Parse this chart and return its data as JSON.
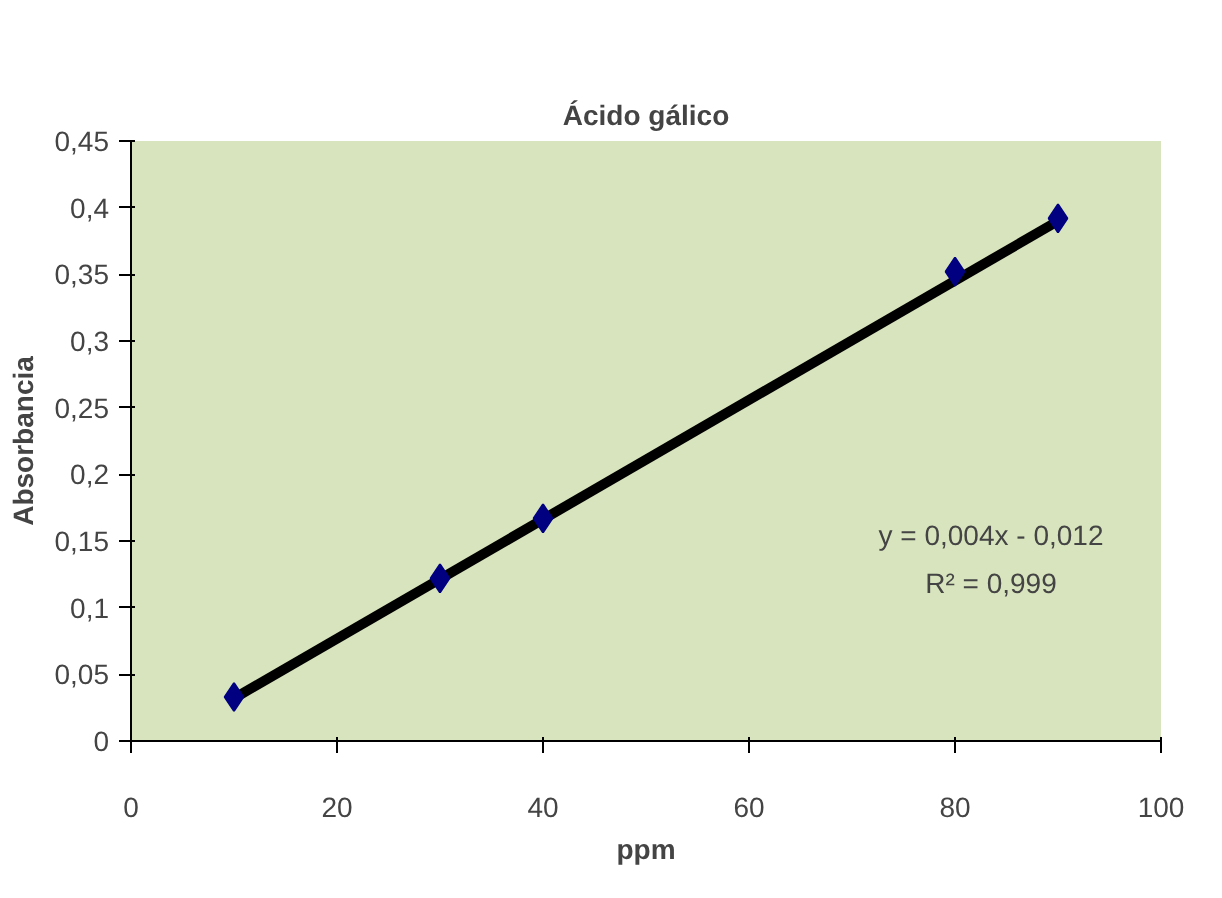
{
  "chart_data": {
    "type": "scatter",
    "title": "Ácido gálico",
    "xlabel": "ppm",
    "ylabel": "Absorbancia",
    "grid": false,
    "xlim": [
      0,
      100
    ],
    "xticks": [
      0,
      20,
      40,
      60,
      80,
      100
    ],
    "ylim": [
      0,
      0.45
    ],
    "yticks": [
      0,
      {
        "value": 0.05,
        "label": "0,05"
      },
      {
        "value": 0.1,
        "label": "0,1"
      },
      {
        "value": 0.15,
        "label": "0,15"
      },
      {
        "value": 0.2,
        "label": "0,2"
      },
      {
        "value": 0.25,
        "label": "0,25"
      },
      {
        "value": 0.3,
        "label": "0,3"
      },
      {
        "value": 0.35,
        "label": "0,35"
      },
      {
        "value": 0.4,
        "label": "0,4"
      },
      {
        "value": 0.45,
        "label": "0,45"
      }
    ],
    "series": [
      {
        "marker": "diamond",
        "color": "#000080",
        "x": [
          10,
          30,
          40,
          80,
          90
        ],
        "values": [
          0.033,
          0.122,
          0.167,
          0.352,
          0.392
        ]
      },
      {
        "type": "line",
        "marker": "none",
        "color": "#000000",
        "x": [
          10,
          90
        ],
        "values": [
          0.032,
          0.39
        ]
      }
    ],
    "annotations": [
      "y = 0,004x - 0,012",
      "R² = 0,999"
    ]
  }
}
